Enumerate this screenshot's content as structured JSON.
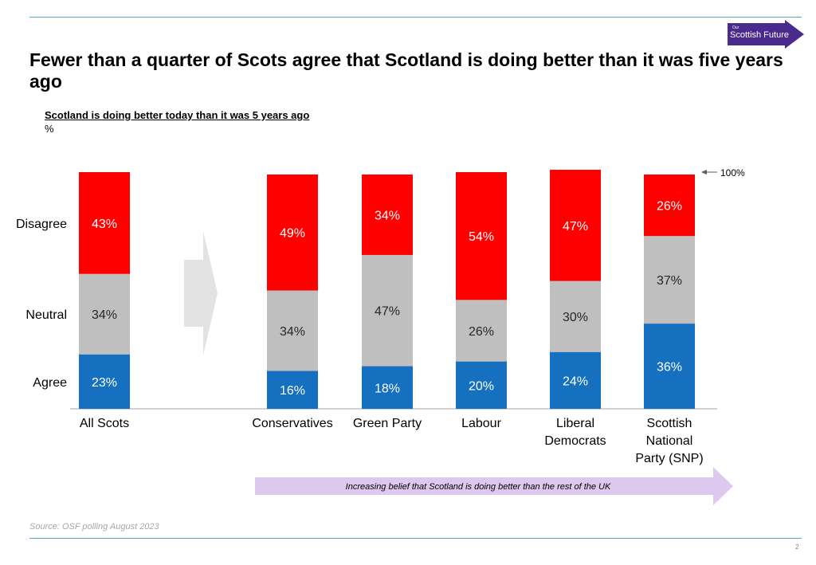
{
  "title": "Fewer than a quarter of Scots agree that Scotland is doing better than it was five years ago",
  "subtitle": "Scotland is doing better today than it was 5 years ago",
  "unit": "%",
  "source": "Source: OSF polling August 2023",
  "page_number": "2",
  "logo": {
    "line1": "Our",
    "line2": "Scottish Future"
  },
  "hundred_label": "100%",
  "banner_text": "Increasing belief that Scotland is doing better than the rest of the UK",
  "colors": {
    "disagree": "#ff0000",
    "neutral": "#bfbfbf",
    "agree": "#1570c0",
    "banner": "#ddc8ef",
    "logo_bg": "#4a2a8c"
  },
  "chart_data": {
    "type": "bar",
    "stacked": true,
    "ylim": [
      0,
      100
    ],
    "categories": [
      [
        "All Scots"
      ],
      [
        "Conservatives"
      ],
      [
        "Green Party"
      ],
      [
        "Labour"
      ],
      [
        "Liberal",
        "Democrats"
      ],
      [
        "Scottish",
        "National",
        "Party (SNP)"
      ]
    ],
    "series": [
      {
        "name": "Agree",
        "color": "#1570c0",
        "values": [
          23,
          16,
          18,
          20,
          24,
          36
        ]
      },
      {
        "name": "Neutral",
        "color": "#bfbfbf",
        "values": [
          34,
          34,
          47,
          26,
          30,
          37
        ]
      },
      {
        "name": "Disagree",
        "color": "#ff0000",
        "values": [
          43,
          49,
          34,
          54,
          47,
          26
        ]
      }
    ]
  }
}
